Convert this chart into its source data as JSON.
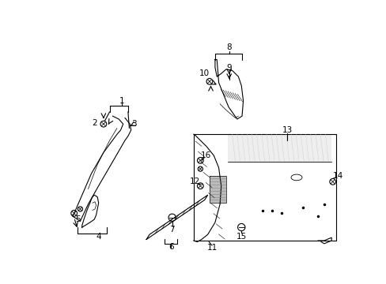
{
  "background_color": "#ffffff",
  "line_color": "#000000",
  "fig_width": 4.89,
  "fig_height": 3.6,
  "dpi": 100,
  "label_fontsize": 7.5,
  "lw": 0.8
}
